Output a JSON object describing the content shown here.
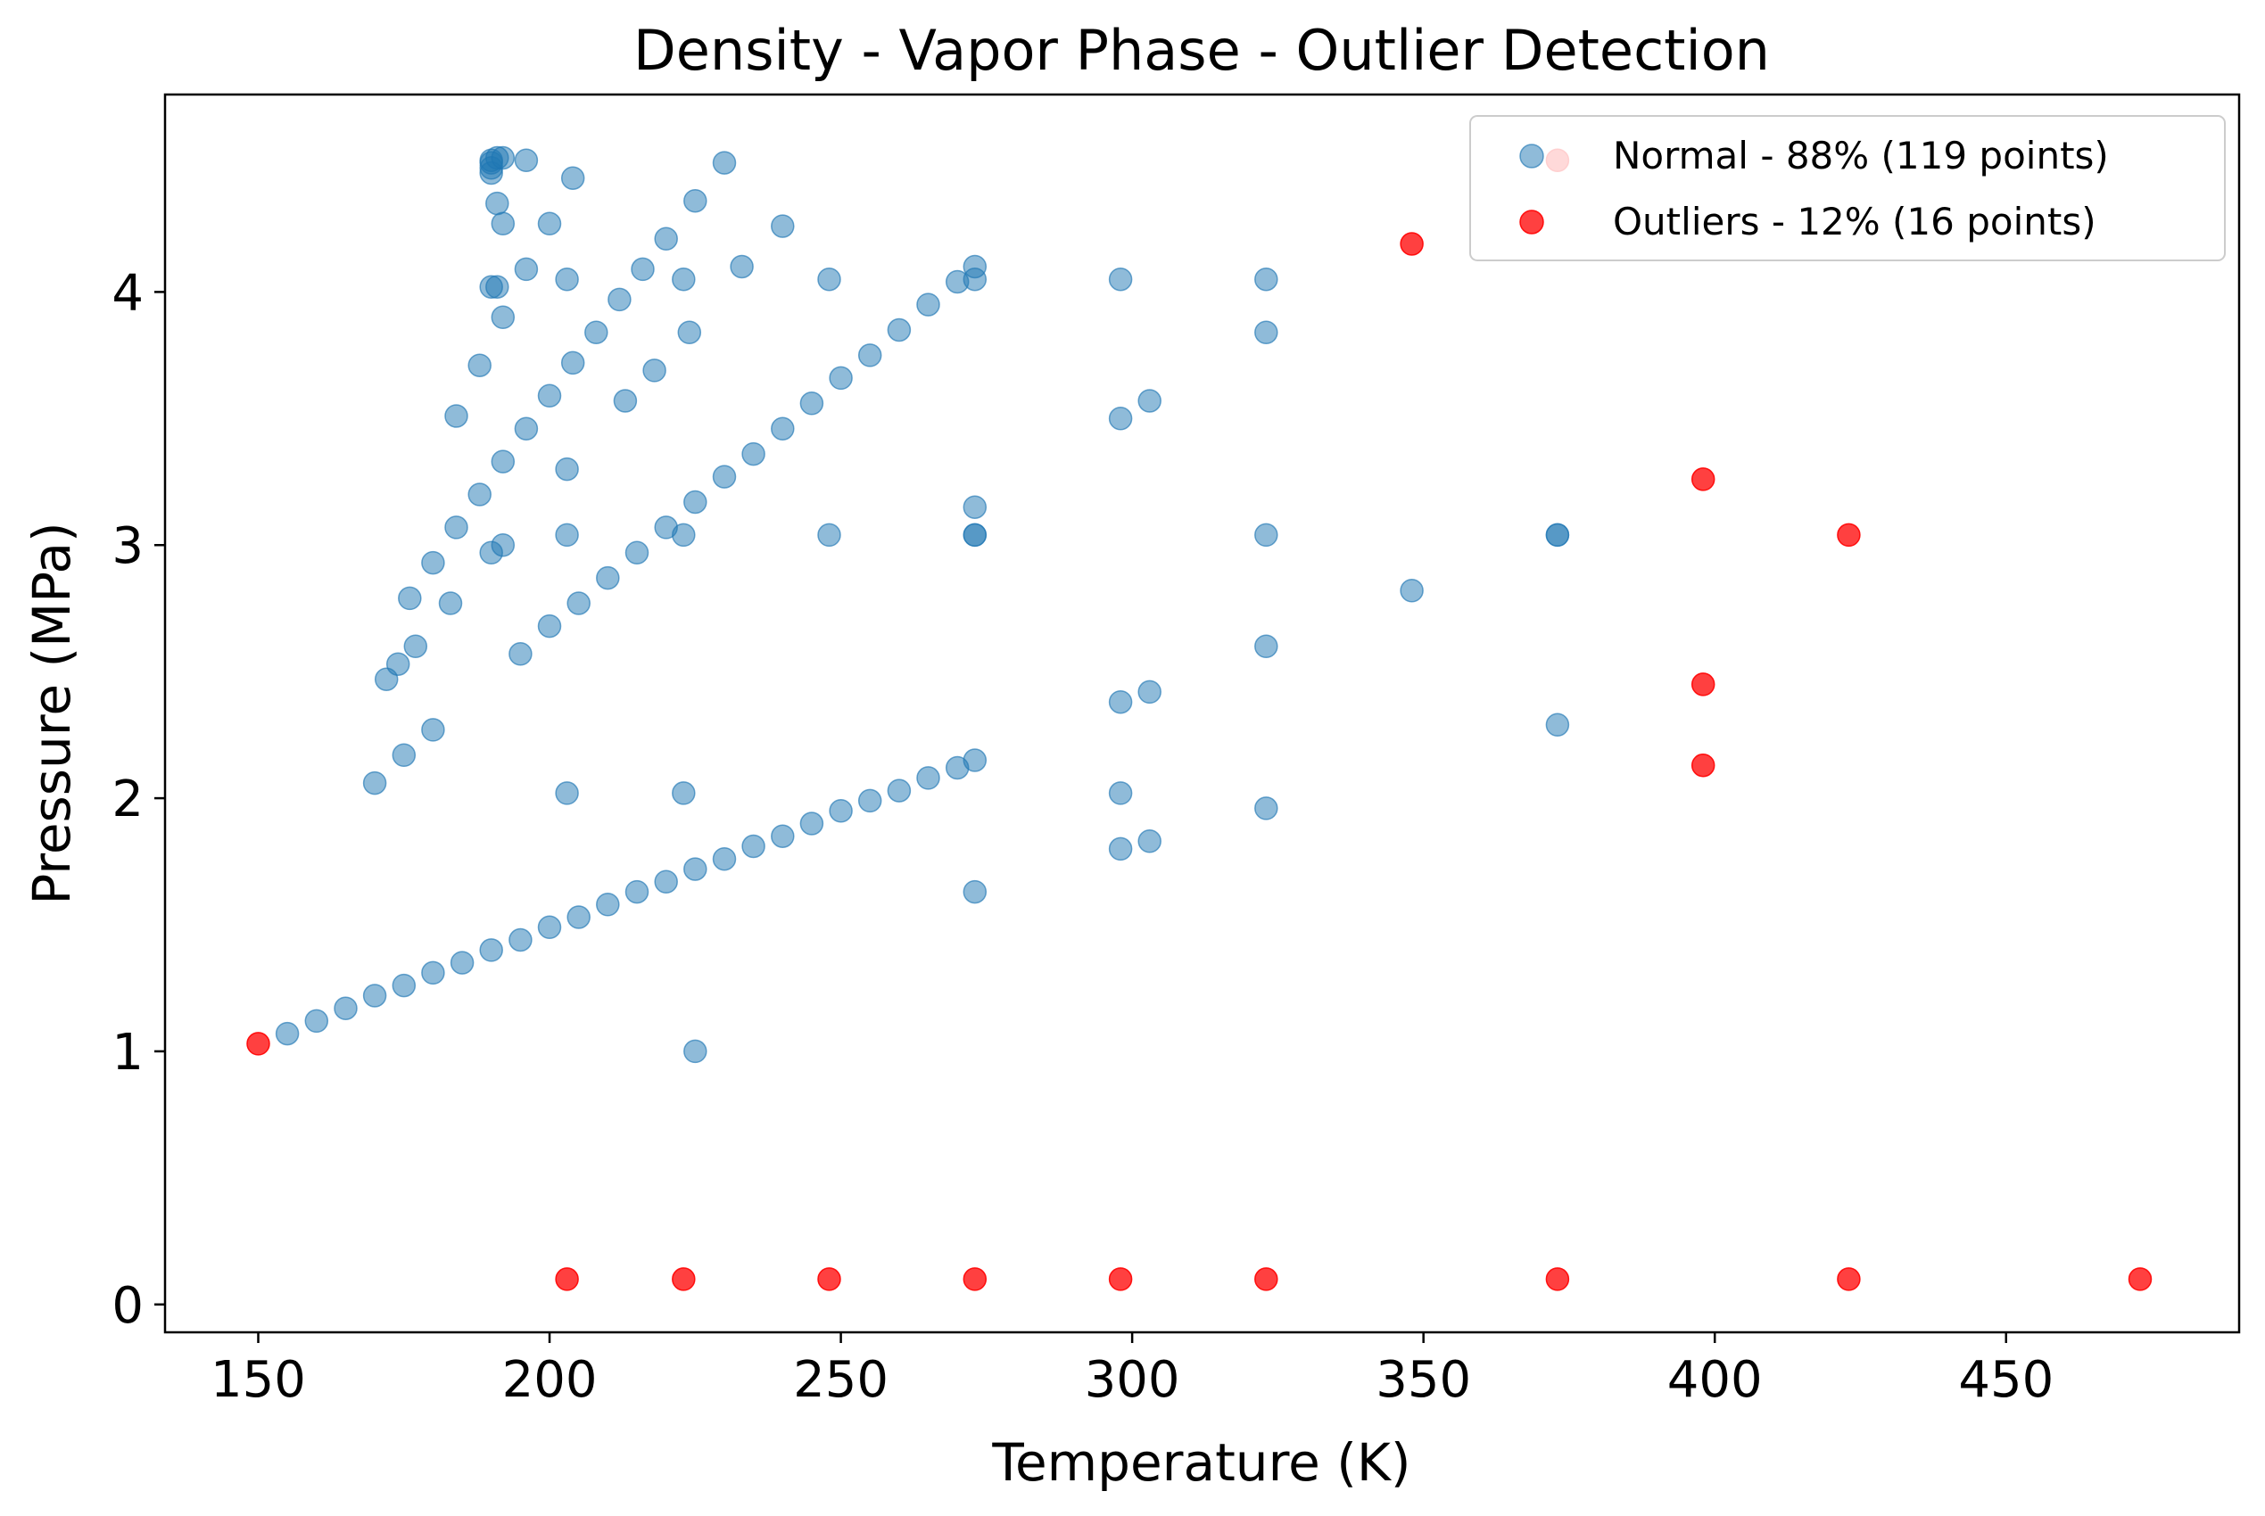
{
  "chart_data": {
    "type": "scatter",
    "title": "Density - Vapor Phase - Outlier Detection",
    "xlabel": "Temperature (K)",
    "ylabel": "Pressure (MPa)",
    "xlim": [
      134,
      490
    ],
    "ylim": [
      -0.11,
      4.78
    ],
    "xticks": [
      150,
      200,
      250,
      300,
      350,
      400,
      450
    ],
    "yticks": [
      0,
      1,
      2,
      3,
      4
    ],
    "grid": false,
    "legend_position": "top-right",
    "series": [
      {
        "name": "Normal - 88% (119 points)",
        "color": "#1f77b4",
        "opacity": 0.5,
        "points": [
          [
            155,
            1.07
          ],
          [
            160,
            1.12
          ],
          [
            165,
            1.17
          ],
          [
            170,
            1.22
          ],
          [
            175,
            1.26
          ],
          [
            180,
            1.31
          ],
          [
            185,
            1.35
          ],
          [
            190,
            1.4
          ],
          [
            195,
            1.44
          ],
          [
            200,
            1.49
          ],
          [
            205,
            1.53
          ],
          [
            210,
            1.58
          ],
          [
            215,
            1.63
          ],
          [
            220,
            1.67
          ],
          [
            225,
            1.72
          ],
          [
            230,
            1.76
          ],
          [
            235,
            1.81
          ],
          [
            240,
            1.85
          ],
          [
            245,
            1.9
          ],
          [
            250,
            1.95
          ],
          [
            255,
            1.99
          ],
          [
            260,
            2.03
          ],
          [
            265,
            2.08
          ],
          [
            270,
            2.12
          ],
          [
            273,
            2.15
          ],
          [
            170,
            2.06
          ],
          [
            175,
            2.17
          ],
          [
            180,
            2.27
          ],
          [
            172,
            2.47
          ],
          [
            174,
            2.53
          ],
          [
            177,
            2.6
          ],
          [
            176,
            2.79
          ],
          [
            180,
            2.93
          ],
          [
            183,
            2.77
          ],
          [
            184,
            3.07
          ],
          [
            188,
            3.2
          ],
          [
            190,
            2.97
          ],
          [
            192,
            3.0
          ],
          [
            192,
            3.33
          ],
          [
            196,
            3.46
          ],
          [
            200,
            3.59
          ],
          [
            204,
            3.72
          ],
          [
            208,
            3.84
          ],
          [
            212,
            3.97
          ],
          [
            216,
            4.09
          ],
          [
            220,
            4.21
          ],
          [
            225,
            4.36
          ],
          [
            230,
            4.51
          ],
          [
            184,
            3.51
          ],
          [
            188,
            3.71
          ],
          [
            192,
            3.9
          ],
          [
            190,
            4.02
          ],
          [
            191,
            4.02
          ],
          [
            196,
            4.09
          ],
          [
            192,
            4.27
          ],
          [
            191,
            4.35
          ],
          [
            190,
            4.47
          ],
          [
            190,
            4.49
          ],
          [
            190,
            4.51
          ],
          [
            190,
            4.52
          ],
          [
            191,
            4.53
          ],
          [
            192,
            4.53
          ],
          [
            196,
            4.52
          ],
          [
            200,
            4.27
          ],
          [
            204,
            4.45
          ],
          [
            195,
            2.57
          ],
          [
            200,
            2.68
          ],
          [
            205,
            2.77
          ],
          [
            210,
            2.87
          ],
          [
            215,
            2.97
          ],
          [
            220,
            3.07
          ],
          [
            225,
            3.17
          ],
          [
            230,
            3.27
          ],
          [
            235,
            3.36
          ],
          [
            240,
            3.46
          ],
          [
            245,
            3.56
          ],
          [
            250,
            3.66
          ],
          [
            255,
            3.75
          ],
          [
            260,
            3.85
          ],
          [
            265,
            3.95
          ],
          [
            270,
            4.04
          ],
          [
            273,
            4.05
          ],
          [
            273,
            4.1
          ],
          [
            203,
            3.3
          ],
          [
            203,
            3.04
          ],
          [
            203,
            4.05
          ],
          [
            213,
            3.57
          ],
          [
            218,
            3.69
          ],
          [
            223,
            3.04
          ],
          [
            224,
            3.84
          ],
          [
            223,
            4.05
          ],
          [
            233,
            4.1
          ],
          [
            240,
            4.26
          ],
          [
            248,
            4.05
          ],
          [
            248,
            3.04
          ],
          [
            203,
            2.02
          ],
          [
            223,
            2.02
          ],
          [
            225,
            1.0
          ],
          [
            273,
            3.04
          ],
          [
            273,
            3.04
          ],
          [
            273,
            3.15
          ],
          [
            273,
            1.63
          ],
          [
            298,
            4.05
          ],
          [
            298,
            3.5
          ],
          [
            303,
            3.57
          ],
          [
            298,
            2.38
          ],
          [
            303,
            2.42
          ],
          [
            298,
            2.02
          ],
          [
            298,
            1.8
          ],
          [
            303,
            1.83
          ],
          [
            323,
            4.05
          ],
          [
            323,
            3.84
          ],
          [
            323,
            3.04
          ],
          [
            323,
            2.6
          ],
          [
            323,
            1.96
          ],
          [
            348,
            2.82
          ],
          [
            373,
            3.04
          ],
          [
            373,
            3.04
          ],
          [
            373,
            2.29
          ]
        ]
      },
      {
        "name": "Outliers - 12% (16 points)",
        "color": "#ff0000",
        "opacity": 0.75,
        "points": [
          [
            150,
            1.03
          ],
          [
            203,
            0.1
          ],
          [
            223,
            0.1
          ],
          [
            248,
            0.1
          ],
          [
            273,
            0.1
          ],
          [
            298,
            0.1
          ],
          [
            323,
            0.1
          ],
          [
            373,
            0.1
          ],
          [
            423,
            0.1
          ],
          [
            473,
            0.1
          ],
          [
            348,
            4.19
          ],
          [
            398,
            3.26
          ],
          [
            423,
            3.04
          ],
          [
            398,
            2.45
          ],
          [
            398,
            2.13
          ],
          [
            373,
            4.52
          ]
        ]
      }
    ]
  }
}
